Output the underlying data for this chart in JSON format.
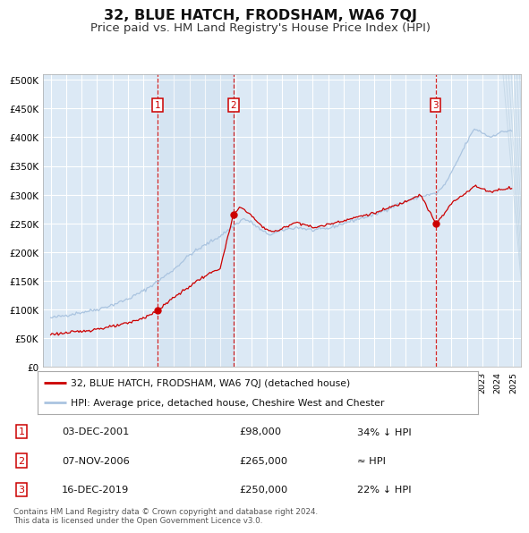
{
  "title": "32, BLUE HATCH, FRODSHAM, WA6 7QJ",
  "subtitle": "Price paid vs. HM Land Registry's House Price Index (HPI)",
  "title_fontsize": 11.5,
  "subtitle_fontsize": 9.5,
  "background_color": "#ffffff",
  "plot_bg_color": "#dce9f5",
  "grid_color": "#ffffff",
  "hpi_color": "#aac4e0",
  "price_color": "#cc0000",
  "vline_color": "#cc0000",
  "sale_points": [
    {
      "date_num": 2001.92,
      "price": 98000,
      "label": "1"
    },
    {
      "date_num": 2006.85,
      "price": 265000,
      "label": "2"
    },
    {
      "date_num": 2019.96,
      "price": 250000,
      "label": "3"
    }
  ],
  "sale_dates_text": [
    "03-DEC-2001",
    "07-NOV-2006",
    "16-DEC-2019"
  ],
  "sale_prices_text": [
    "£98,000",
    "£265,000",
    "£250,000"
  ],
  "sale_notes_text": [
    "34% ↓ HPI",
    "≈ HPI",
    "22% ↓ HPI"
  ],
  "legend_line1": "32, BLUE HATCH, FRODSHAM, WA6 7QJ (detached house)",
  "legend_line2": "HPI: Average price, detached house, Cheshire West and Chester",
  "footer": "Contains HM Land Registry data © Crown copyright and database right 2024.\nThis data is licensed under the Open Government Licence v3.0.",
  "ylim": [
    0,
    510000
  ],
  "xlim_start": 1994.5,
  "xlim_end": 2025.5,
  "yticks": [
    0,
    50000,
    100000,
    150000,
    200000,
    250000,
    300000,
    350000,
    400000,
    450000,
    500000
  ],
  "ytick_labels": [
    "£0",
    "£50K",
    "£100K",
    "£150K",
    "£200K",
    "£250K",
    "£300K",
    "£350K",
    "£400K",
    "£450K",
    "£500K"
  ],
  "hpi_anchors": [
    [
      1995.0,
      85000
    ],
    [
      1996.0,
      90000
    ],
    [
      1997.0,
      95000
    ],
    [
      1998.0,
      100000
    ],
    [
      1999.0,
      108000
    ],
    [
      2000.0,
      118000
    ],
    [
      2001.0,
      132000
    ],
    [
      2002.0,
      150000
    ],
    [
      2003.0,
      170000
    ],
    [
      2004.0,
      195000
    ],
    [
      2005.0,
      212000
    ],
    [
      2006.0,
      228000
    ],
    [
      2007.0,
      248000
    ],
    [
      2007.5,
      258000
    ],
    [
      2008.0,
      252000
    ],
    [
      2008.8,
      235000
    ],
    [
      2009.3,
      230000
    ],
    [
      2010.0,
      238000
    ],
    [
      2011.0,
      243000
    ],
    [
      2012.0,
      238000
    ],
    [
      2013.0,
      241000
    ],
    [
      2014.0,
      250000
    ],
    [
      2015.0,
      258000
    ],
    [
      2016.0,
      265000
    ],
    [
      2017.0,
      277000
    ],
    [
      2018.0,
      288000
    ],
    [
      2019.0,
      297000
    ],
    [
      2020.0,
      302000
    ],
    [
      2020.5,
      315000
    ],
    [
      2021.0,
      338000
    ],
    [
      2021.5,
      365000
    ],
    [
      2022.0,
      392000
    ],
    [
      2022.5,
      415000
    ],
    [
      2023.0,
      408000
    ],
    [
      2023.5,
      400000
    ],
    [
      2024.0,
      407000
    ],
    [
      2024.8,
      412000
    ]
  ],
  "red_anchors": [
    [
      1995.0,
      57000
    ],
    [
      1996.0,
      59000
    ],
    [
      1997.0,
      62000
    ],
    [
      1998.0,
      66000
    ],
    [
      1999.0,
      70000
    ],
    [
      2000.0,
      76000
    ],
    [
      2001.0,
      85000
    ],
    [
      2001.92,
      98000
    ],
    [
      2002.5,
      110000
    ],
    [
      2003.0,
      122000
    ],
    [
      2003.5,
      130000
    ],
    [
      2004.0,
      140000
    ],
    [
      2004.5,
      150000
    ],
    [
      2005.0,
      158000
    ],
    [
      2005.5,
      165000
    ],
    [
      2006.0,
      172000
    ],
    [
      2006.85,
      265000
    ],
    [
      2007.3,
      278000
    ],
    [
      2007.8,
      270000
    ],
    [
      2008.2,
      258000
    ],
    [
      2008.8,
      242000
    ],
    [
      2009.5,
      235000
    ],
    [
      2010.0,
      240000
    ],
    [
      2010.5,
      248000
    ],
    [
      2011.0,
      252000
    ],
    [
      2011.5,
      248000
    ],
    [
      2012.0,
      242000
    ],
    [
      2012.5,
      245000
    ],
    [
      2013.0,
      248000
    ],
    [
      2013.5,
      252000
    ],
    [
      2014.0,
      255000
    ],
    [
      2014.5,
      258000
    ],
    [
      2015.0,
      262000
    ],
    [
      2015.5,
      265000
    ],
    [
      2016.0,
      268000
    ],
    [
      2016.5,
      272000
    ],
    [
      2017.0,
      278000
    ],
    [
      2017.5,
      282000
    ],
    [
      2018.0,
      288000
    ],
    [
      2018.5,
      295000
    ],
    [
      2019.0,
      300000
    ],
    [
      2019.96,
      250000
    ],
    [
      2020.5,
      265000
    ],
    [
      2021.0,
      285000
    ],
    [
      2021.5,
      295000
    ],
    [
      2022.0,
      305000
    ],
    [
      2022.5,
      315000
    ],
    [
      2023.0,
      310000
    ],
    [
      2023.5,
      305000
    ],
    [
      2024.0,
      308000
    ],
    [
      2024.8,
      312000
    ]
  ]
}
